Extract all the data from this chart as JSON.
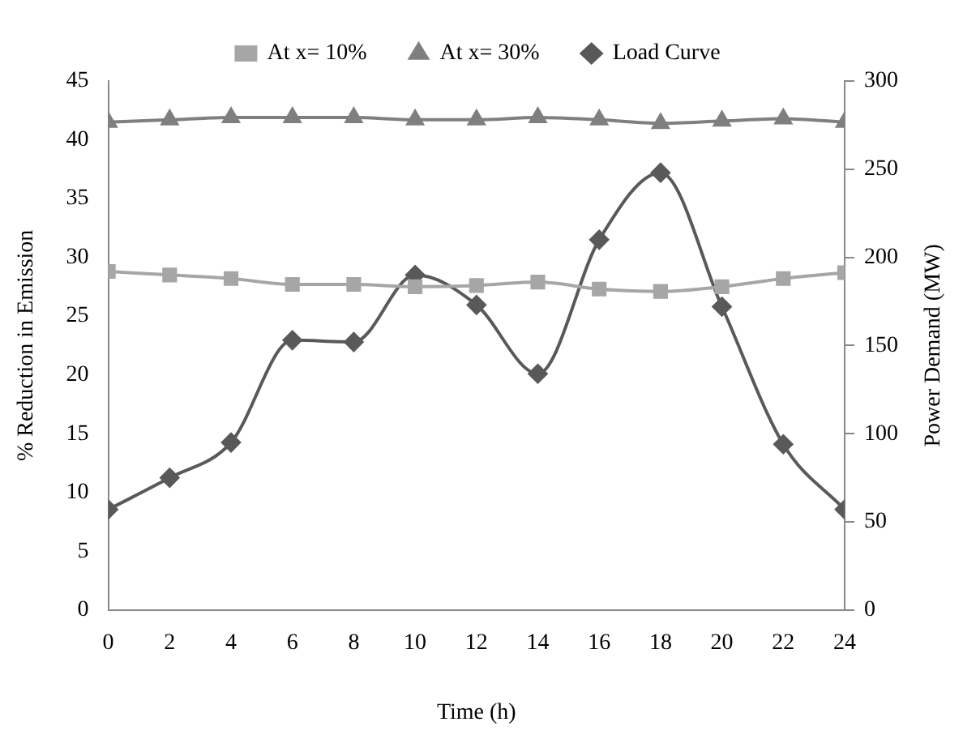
{
  "chart_data": {
    "type": "line",
    "xlabel": "Time (h)",
    "ylabel": "% Reduction in Emission",
    "y2label": "Power Demand (MW)",
    "x": [
      0,
      2,
      4,
      6,
      8,
      10,
      12,
      14,
      16,
      18,
      20,
      22,
      24
    ],
    "xlim": [
      0,
      24
    ],
    "xticks": [
      0,
      2,
      4,
      6,
      8,
      10,
      12,
      14,
      16,
      18,
      20,
      22,
      24
    ],
    "series": [
      {
        "name": "At x= 10%",
        "color": "#a6a6a6",
        "marker": "square",
        "values": [
          28.8,
          28.5,
          28.2,
          27.7,
          27.7,
          27.5,
          27.6,
          27.9,
          27.3,
          27.1,
          27.5,
          28.2,
          28.7
        ]
      },
      {
        "name": "At x= 30%",
        "color": "#7f7f7f",
        "marker": "triangle",
        "values": [
          41.5,
          41.7,
          41.9,
          41.9,
          41.9,
          41.7,
          41.7,
          41.9,
          41.7,
          41.4,
          41.6,
          41.8,
          41.5
        ]
      },
      {
        "name": "Load Curve",
        "color": "#595959",
        "marker": "diamond",
        "axis": "y2",
        "values": [
          57,
          75,
          95,
          153,
          152,
          190,
          173,
          134,
          210,
          248,
          172,
          94,
          57
        ]
      }
    ],
    "ylim": [
      0,
      45
    ],
    "yticks": [
      0,
      5,
      10,
      15,
      20,
      25,
      30,
      35,
      40,
      45
    ],
    "y2lim": [
      0,
      300
    ],
    "y2ticks": [
      0,
      50,
      100,
      150,
      200,
      250,
      300
    ],
    "grid": false,
    "legend": "top"
  }
}
